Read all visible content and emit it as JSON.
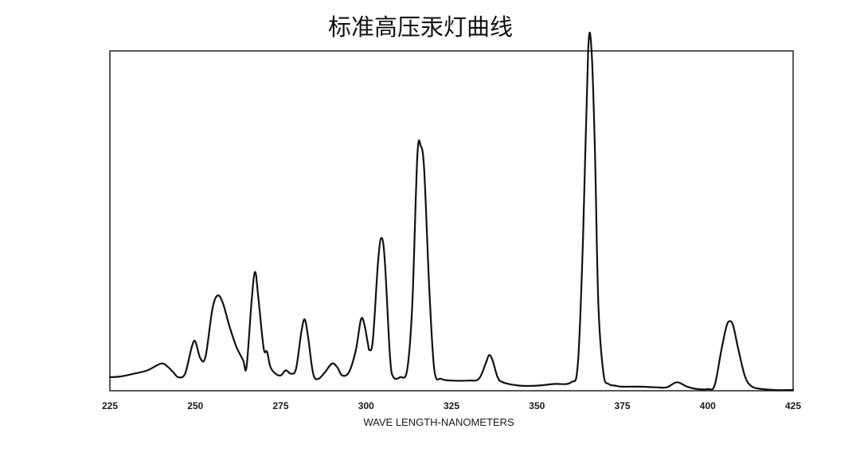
{
  "chart_data": {
    "type": "line",
    "title": "标准高压汞灯曲线",
    "xlabel": "WAVE LENGTH-NANOMETERS",
    "ylabel": "",
    "xlim": [
      225,
      425
    ],
    "ylim": [
      0,
      100
    ],
    "xticks": [
      225,
      250,
      275,
      300,
      325,
      350,
      375,
      400,
      425
    ],
    "grid": false,
    "legend": "none",
    "line_color": "#111111",
    "series": [
      {
        "x": [
          225,
          228,
          232,
          236,
          240,
          242,
          243.5,
          245,
          247,
          249,
          250,
          251.5,
          253,
          255,
          256.5,
          258,
          260,
          262,
          264,
          265,
          266.5,
          267.5,
          268.5,
          270,
          271,
          272,
          273.5,
          275,
          276.5,
          278,
          279.5,
          281,
          282,
          283,
          284.5,
          286,
          288,
          290,
          291.5,
          293,
          295,
          297,
          298.5,
          299.5,
          300.5,
          301,
          302,
          303.5,
          304.5,
          305.5,
          307,
          308,
          310,
          312,
          313.5,
          315,
          316,
          317,
          318.5,
          320,
          322,
          325,
          330,
          333,
          335,
          336,
          337,
          338.5,
          340,
          345,
          350,
          355,
          360,
          362,
          363.5,
          365,
          366,
          367,
          368,
          369.5,
          371,
          373,
          375,
          380,
          385,
          388,
          391,
          394,
          397,
          400,
          402,
          404,
          405.5,
          406.5,
          407.5,
          409,
          411,
          413,
          416,
          420,
          425
        ],
        "y": [
          4,
          4.2,
          5,
          6,
          8,
          7,
          5.5,
          4,
          5,
          13,
          14.5,
          9.5,
          10,
          24,
          28,
          26,
          19,
          13,
          9,
          7,
          26.5,
          35,
          27,
          12.5,
          11.5,
          7,
          5,
          4.5,
          6,
          5,
          6.5,
          17,
          21,
          16,
          5,
          3.5,
          5.5,
          8,
          7,
          4.5,
          5.5,
          12,
          21,
          19.5,
          14,
          12,
          15,
          38,
          45,
          38,
          10,
          4,
          4,
          6,
          25,
          69,
          72,
          65,
          30,
          6,
          3.5,
          3,
          3,
          3.5,
          8,
          10.5,
          9,
          4,
          2.5,
          1.5,
          1.5,
          2,
          2.5,
          8,
          45,
          100,
          100,
          70,
          25,
          5,
          2,
          1.5,
          1.2,
          1.2,
          1,
          1,
          2.5,
          1.2,
          0.5,
          0.5,
          1.5,
          12,
          19,
          20.5,
          19,
          12,
          4,
          1.2,
          0.5,
          0.2,
          0.2
        ]
      }
    ]
  }
}
